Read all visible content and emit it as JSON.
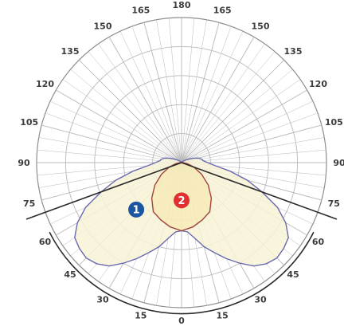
{
  "chart_data": {
    "type": "polar",
    "angle_labels": [
      "180",
      "165",
      "150",
      "135",
      "120",
      "105",
      "90",
      "75",
      "60",
      "45",
      "30",
      "15",
      "0"
    ],
    "angle_ticks_deg": [
      180,
      165,
      150,
      135,
      120,
      105,
      90,
      75,
      60,
      45,
      30,
      15,
      0
    ],
    "radial_max": 1.0,
    "radial_rings": [
      0.2,
      0.4,
      0.6,
      0.8,
      1.0
    ],
    "grid": true,
    "series": [
      {
        "name": "",
        "marker": "1",
        "color": "#6a6ab0",
        "fill": "#f7f3d6",
        "points": [
          [
            0,
            0.47
          ],
          [
            5,
            0.48
          ],
          [
            10,
            0.53
          ],
          [
            15,
            0.6
          ],
          [
            20,
            0.66
          ],
          [
            25,
            0.73
          ],
          [
            30,
            0.8
          ],
          [
            35,
            0.87
          ],
          [
            40,
            0.91
          ],
          [
            45,
            0.93
          ],
          [
            50,
            0.92
          ],
          [
            55,
            0.9
          ],
          [
            60,
            0.83
          ],
          [
            65,
            0.73
          ],
          [
            70,
            0.59
          ],
          [
            75,
            0.47
          ],
          [
            80,
            0.34
          ],
          [
            85,
            0.23
          ],
          [
            90,
            0.18
          ],
          [
            95,
            0.15
          ],
          [
            100,
            0.14
          ],
          [
            105,
            0.12
          ],
          [
            110,
            0.09
          ],
          [
            115,
            0.06
          ],
          [
            120,
            0.04
          ],
          [
            130,
            0.02
          ],
          [
            140,
            0.01
          ],
          [
            150,
            0.0
          ],
          [
            160,
            0.0
          ],
          [
            170,
            0.0
          ],
          [
            180,
            0.0
          ]
        ]
      },
      {
        "name": "",
        "marker": "2",
        "color": "#a0443c",
        "fill": "#f5e6a6",
        "points": [
          [
            0,
            0.47
          ],
          [
            10,
            0.45
          ],
          [
            20,
            0.42
          ],
          [
            30,
            0.39
          ],
          [
            40,
            0.32
          ],
          [
            50,
            0.24
          ],
          [
            60,
            0.16
          ],
          [
            70,
            0.09
          ],
          [
            80,
            0.04
          ],
          [
            90,
            0.01
          ],
          [
            100,
            0.0
          ],
          [
            120,
            0.0
          ],
          [
            150,
            0.0
          ],
          [
            180,
            0.0
          ]
        ]
      }
    ]
  },
  "colors": {
    "grid": "#b8b8b8",
    "ring": "#8e8e8e",
    "outer_line": "#2a2a2a",
    "marker1": "#1a56a2",
    "marker2": "#e03030"
  }
}
